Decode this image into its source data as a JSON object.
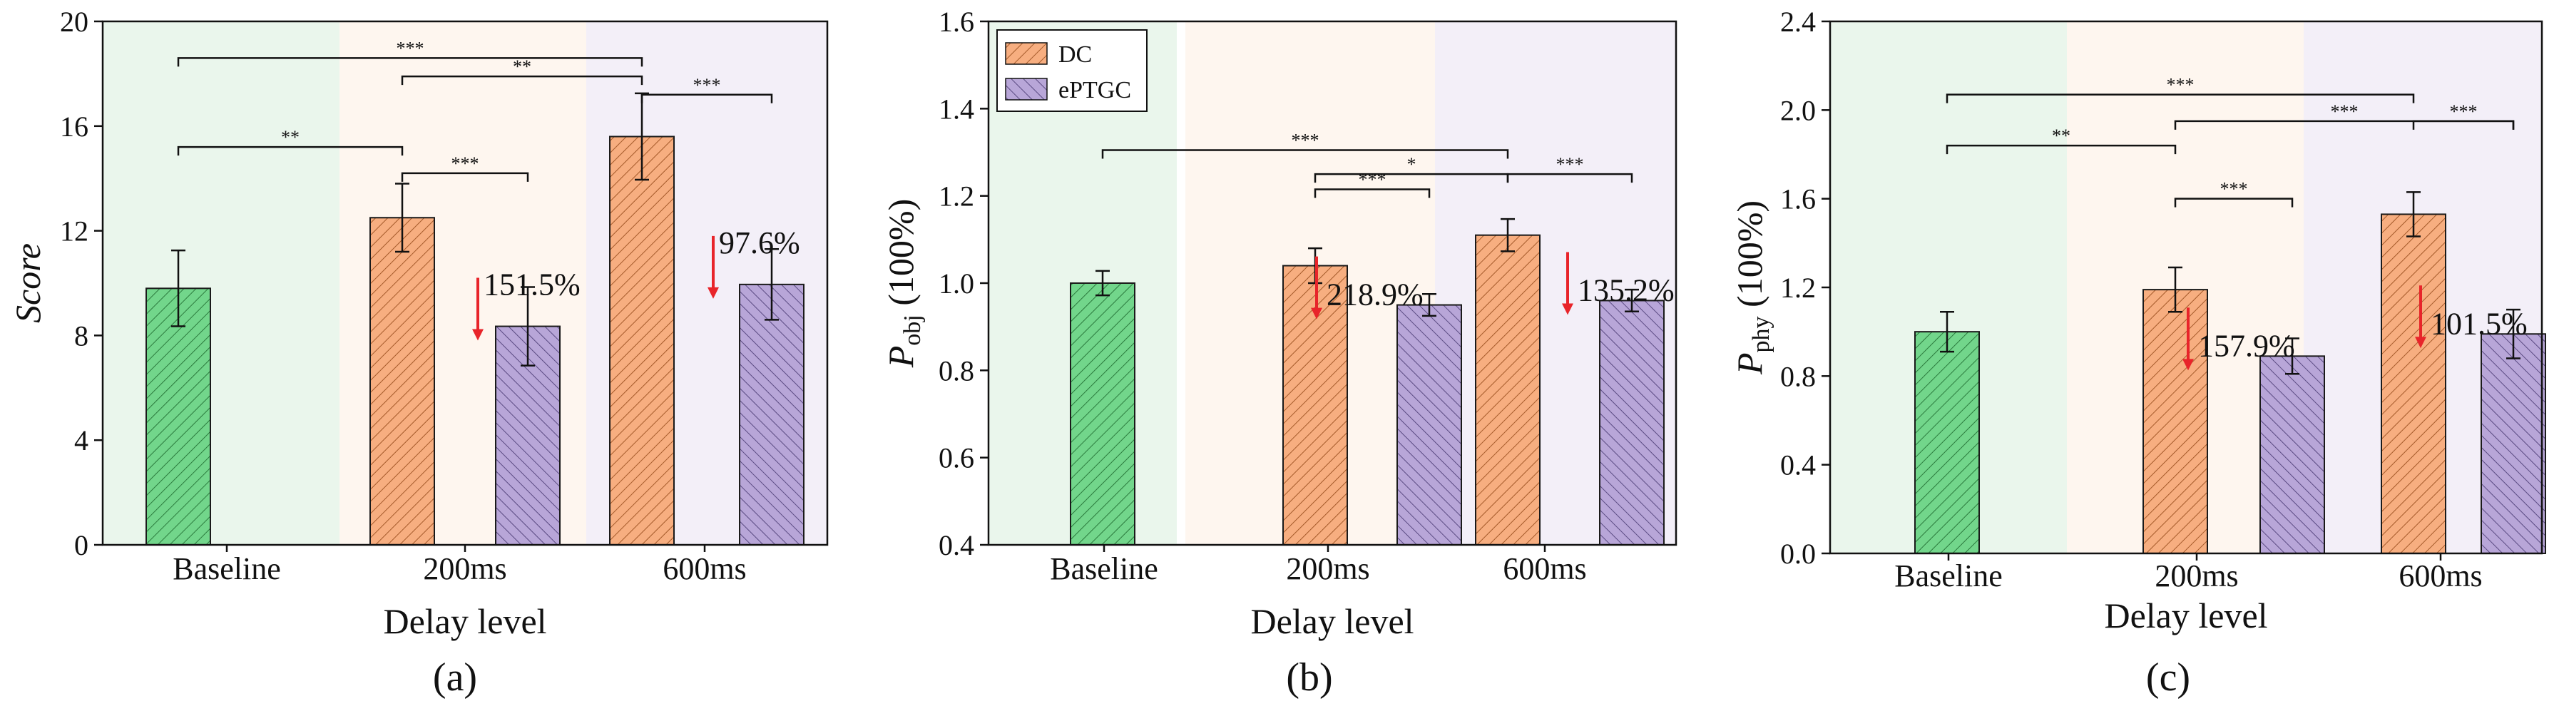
{
  "colors": {
    "dc_fill": "#F7AE80",
    "dc_edge": "#A55A2A",
    "eptgc_fill": "#B8A6D8",
    "eptgc_edge": "#5A4A82",
    "baseline_fill": "#72D68B",
    "baseline_edge": "#2B7A3D",
    "bg_baseline": "#EAF6EC",
    "bg_200": "#FEF6EF",
    "bg_600": "#F3EFF8",
    "arrow": "#E8242A"
  },
  "chart_data": [
    {
      "type": "bar",
      "panel_label": "(a)",
      "ylabel": "Score",
      "xlabel": "Delay level",
      "ylim": [
        0,
        20
      ],
      "yticks": [
        0,
        4,
        8,
        12,
        16,
        20
      ],
      "ytick_labels": [
        "0",
        "4",
        "8",
        "12",
        "16",
        "20"
      ],
      "categories": [
        "Baseline",
        "200ms",
        "600ms"
      ],
      "bars": [
        {
          "group": "Baseline",
          "series": "Baseline",
          "value": 9.8,
          "error": 1.45
        },
        {
          "group": "200ms",
          "series": "DC",
          "value": 12.5,
          "error": 1.3
        },
        {
          "group": "200ms",
          "series": "ePTGC",
          "value": 8.35,
          "error": 1.5
        },
        {
          "group": "600ms",
          "series": "DC",
          "value": 15.6,
          "error": 1.65
        },
        {
          "group": "600ms",
          "series": "ePTGC",
          "value": 9.95,
          "error": 1.35
        }
      ],
      "reductions": [
        {
          "group": "200ms",
          "label": "151.5%"
        },
        {
          "group": "600ms",
          "label": "97.6%"
        }
      ],
      "significance": [
        {
          "from": 0,
          "to": 3,
          "y": 18.6,
          "label": "***"
        },
        {
          "from": 1,
          "to": 3,
          "y": 17.9,
          "label": "**"
        },
        {
          "from": 3,
          "to": 4,
          "y": 17.2,
          "label": "***"
        },
        {
          "from": 0,
          "to": 1,
          "y": 15.2,
          "label": "**"
        },
        {
          "from": 1,
          "to": 2,
          "y": 14.2,
          "label": "***"
        }
      ]
    },
    {
      "type": "bar",
      "panel_label": "(b)",
      "ylabel_main": "P",
      "ylabel_sub": "obj",
      "ylabel_unit": " (100%)",
      "xlabel": "Delay level",
      "ylim": [
        0.4,
        1.6
      ],
      "yticks": [
        0.4,
        0.6,
        0.8,
        1.0,
        1.2,
        1.4,
        1.6
      ],
      "ytick_labels": [
        "0.4",
        "0.6",
        "0.8",
        "1.0",
        "1.2",
        "1.4",
        "1.6"
      ],
      "categories": [
        "Baseline",
        "200ms",
        "600ms"
      ],
      "legend": [
        "DC",
        "ePTGC"
      ],
      "bars": [
        {
          "group": "Baseline",
          "series": "Baseline",
          "value": 1.0,
          "error": 0.028
        },
        {
          "group": "200ms",
          "series": "DC",
          "value": 1.04,
          "error": 0.04
        },
        {
          "group": "200ms",
          "series": "ePTGC",
          "value": 0.95,
          "error": 0.025
        },
        {
          "group": "600ms",
          "series": "DC",
          "value": 1.11,
          "error": 0.037
        },
        {
          "group": "600ms",
          "series": "ePTGC",
          "value": 0.96,
          "error": 0.025
        }
      ],
      "reductions": [
        {
          "group": "200ms",
          "label": "218.9%"
        },
        {
          "group": "600ms",
          "label": "135.2%"
        }
      ],
      "significance": [
        {
          "from": 0,
          "to": 3,
          "y": 1.305,
          "label": "***"
        },
        {
          "from": 1,
          "to": 3,
          "y": 1.25,
          "label": "*"
        },
        {
          "from": 3,
          "to": 4,
          "y": 1.25,
          "label": "***"
        },
        {
          "from": 1,
          "to": 2,
          "y": 1.215,
          "label": "***"
        }
      ]
    },
    {
      "type": "bar",
      "panel_label": "(c)",
      "ylabel_main": "P",
      "ylabel_sub": "phy",
      "ylabel_unit": " (100%)",
      "xlabel": "Delay level",
      "ylim": [
        0,
        2.4
      ],
      "yticks": [
        0,
        0.4,
        0.8,
        1.2,
        1.6,
        2.0,
        2.4
      ],
      "ytick_labels": [
        "0.0",
        "0.4",
        "0.8",
        "1.2",
        "1.6",
        "2.0",
        "2.4"
      ],
      "categories": [
        "Baseline",
        "200ms",
        "600ms"
      ],
      "bars": [
        {
          "group": "Baseline",
          "series": "Baseline",
          "value": 1.0,
          "error": 0.09
        },
        {
          "group": "200ms",
          "series": "DC",
          "value": 1.19,
          "error": 0.1
        },
        {
          "group": "200ms",
          "series": "ePTGC",
          "value": 0.89,
          "error": 0.08
        },
        {
          "group": "600ms",
          "series": "DC",
          "value": 1.53,
          "error": 0.1
        },
        {
          "group": "600ms",
          "series": "ePTGC",
          "value": 0.99,
          "error": 0.11
        }
      ],
      "reductions": [
        {
          "group": "200ms",
          "label": "157.9%"
        },
        {
          "group": "600ms",
          "label": "101.5%"
        }
      ],
      "significance": [
        {
          "from": 0,
          "to": 3,
          "y": 2.07,
          "label": "***"
        },
        {
          "from": 1,
          "to": 4,
          "y": 1.95,
          "label": "***"
        },
        {
          "from": 3,
          "to": 4,
          "y": 1.95,
          "label": "***"
        },
        {
          "from": 0,
          "to": 1,
          "y": 1.84,
          "label": "**"
        },
        {
          "from": 1,
          "to": 2,
          "y": 1.6,
          "label": "***"
        }
      ]
    }
  ]
}
